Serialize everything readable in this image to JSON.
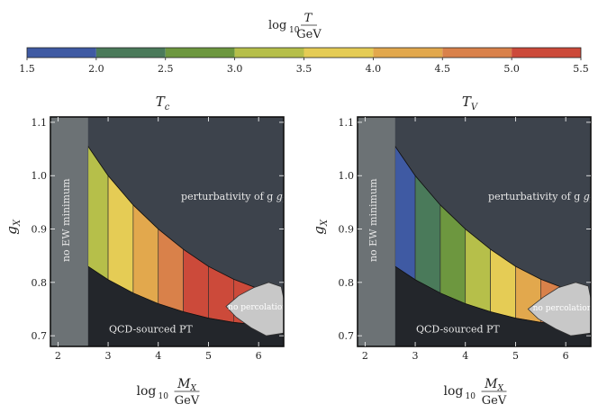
{
  "colorbar": {
    "title_main": "log",
    "title_sub": "10",
    "title_num": "T",
    "title_den": "GeV",
    "ticks": [
      "1.5",
      "2.0",
      "2.5",
      "3.0",
      "3.5",
      "4.0",
      "4.5",
      "5.0",
      "5.5"
    ],
    "colors": [
      "#3f5aa3",
      "#4a7a5a",
      "#6d973f",
      "#b6bf4a",
      "#e5cc55",
      "#e2a84d",
      "#d9814a",
      "#cc4a3a"
    ],
    "range": [
      1.5,
      5.5
    ]
  },
  "colors": {
    "perturbativity": "#3d434c",
    "qcd": "#23262b",
    "no_ew": "#6c7275",
    "no_percolation": "#c8c8c8",
    "frame": "#111111"
  },
  "xlabel_main": "log",
  "xlabel_sub": "10",
  "xlabel_num": "M",
  "xlabel_num_sub": "X",
  "xlabel_den": "GeV",
  "ylabel": "g",
  "ylabel_sub": "X",
  "regions": {
    "no_ew": "no EW minimum",
    "perturbativity": "perturbativity of g",
    "perturbativity_sub": "X",
    "qcd": "QCD-sourced PT",
    "no_percolation": "no percolation"
  },
  "chart_data": [
    {
      "type": "heatmap",
      "title": "T",
      "title_sub": "c",
      "xlim": [
        1.85,
        6.5
      ],
      "ylim": [
        0.68,
        1.11
      ],
      "x_ticks": [
        2,
        3,
        4,
        5,
        6
      ],
      "y_ticks": [
        "0.7",
        "0.8",
        "0.9",
        "1.0",
        "1.1"
      ],
      "no_ew_max_x": 2.6,
      "band_edges_x": [
        2.6,
        3.0,
        3.5,
        4.0,
        4.5,
        5.0,
        5.5,
        6.0,
        6.5
      ],
      "band_values": [
        3.25,
        3.75,
        4.25,
        4.75,
        5.25,
        5.75,
        6.25,
        6.75
      ],
      "upper_boundary": {
        "x": [
          2.6,
          3.0,
          3.5,
          4.0,
          4.5,
          5.0,
          5.5,
          6.0,
          6.5
        ],
        "y": [
          1.055,
          1.0,
          0.945,
          0.9,
          0.862,
          0.83,
          0.806,
          0.788,
          0.775
        ]
      },
      "lower_boundary": {
        "x": [
          2.6,
          3.0,
          3.5,
          4.0,
          4.5,
          5.0,
          5.5,
          6.0,
          6.5
        ],
        "y": [
          0.83,
          0.805,
          0.78,
          0.76,
          0.745,
          0.733,
          0.725,
          0.72,
          0.717
        ]
      },
      "no_percolation": {
        "x": [
          5.35,
          5.6,
          5.9,
          6.2,
          6.45,
          6.5,
          6.5,
          6.15,
          5.85,
          5.55,
          5.35
        ],
        "y": [
          0.755,
          0.775,
          0.79,
          0.8,
          0.792,
          0.77,
          0.705,
          0.7,
          0.715,
          0.735,
          0.755
        ]
      }
    },
    {
      "type": "heatmap",
      "title": "T",
      "title_sub": "V",
      "xlim": [
        1.85,
        6.5
      ],
      "ylim": [
        0.68,
        1.11
      ],
      "x_ticks": [
        2,
        3,
        4,
        5,
        6
      ],
      "y_ticks": [
        "0.7",
        "0.8",
        "0.9",
        "1.0",
        "1.1"
      ],
      "no_ew_max_x": 2.6,
      "band_edges_x": [
        2.6,
        3.0,
        3.5,
        4.0,
        4.5,
        5.0,
        5.5,
        6.0,
        6.5
      ],
      "band_values": [
        1.75,
        2.25,
        2.75,
        3.25,
        3.75,
        4.25,
        4.75,
        5.25
      ],
      "upper_boundary": {
        "x": [
          2.6,
          3.0,
          3.5,
          4.0,
          4.5,
          5.0,
          5.5,
          6.0,
          6.5
        ],
        "y": [
          1.055,
          1.0,
          0.945,
          0.9,
          0.862,
          0.83,
          0.806,
          0.788,
          0.775
        ]
      },
      "lower_boundary": {
        "x": [
          2.6,
          3.0,
          3.5,
          4.0,
          4.5,
          5.0,
          5.5,
          6.0,
          6.5
        ],
        "y": [
          0.83,
          0.805,
          0.78,
          0.76,
          0.745,
          0.733,
          0.725,
          0.72,
          0.717
        ]
      },
      "no_percolation": {
        "x": [
          5.25,
          5.55,
          5.85,
          6.2,
          6.45,
          6.5,
          6.5,
          6.1,
          5.8,
          5.45,
          5.25
        ],
        "y": [
          0.75,
          0.772,
          0.79,
          0.8,
          0.793,
          0.77,
          0.705,
          0.7,
          0.713,
          0.732,
          0.75
        ]
      }
    }
  ]
}
